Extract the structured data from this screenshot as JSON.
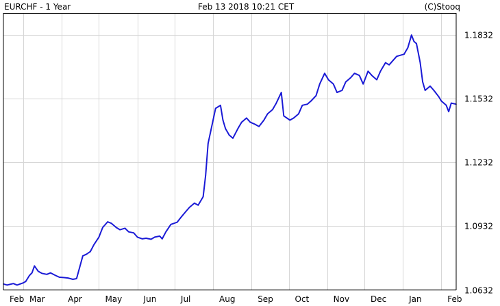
{
  "header": {
    "title": "EURCHF - 1 Year",
    "timestamp": "Feb 13 2018 10:21 CET",
    "source": "(C)Stooq"
  },
  "colors": {
    "series": "#1a1ad6",
    "grid": "#d6d6d6",
    "frame": "#000000",
    "background": "#ffffff"
  },
  "chart_data": {
    "type": "line",
    "title": "EURCHF - 1 Year",
    "xlabel": "",
    "ylabel": "",
    "grid": true,
    "y_axis_side": "right",
    "ylim": [
      1.0632,
      1.1932
    ],
    "yticks": [
      1.0632,
      1.0932,
      1.1232,
      1.1532,
      1.1832
    ],
    "ytick_labels": [
      "1.0632",
      "1.0932",
      "1.1232",
      "1.1532",
      "1.1832"
    ],
    "xlim": [
      "2017-02-13",
      "2018-02-13"
    ],
    "xtick_labels": [
      {
        "label": "Feb",
        "date": "2017-02-01"
      },
      {
        "label": "Mar",
        "date": "2017-03-01"
      },
      {
        "label": "Apr",
        "date": "2017-04-01"
      },
      {
        "label": "May",
        "date": "2017-05-01"
      },
      {
        "label": "Jun",
        "date": "2017-06-01"
      },
      {
        "label": "Jul",
        "date": "2017-07-01"
      },
      {
        "label": "Aug",
        "date": "2017-08-01"
      },
      {
        "label": "Sep",
        "date": "2017-09-01"
      },
      {
        "label": "Oct",
        "date": "2017-10-01"
      },
      {
        "label": "Nov",
        "date": "2017-11-01"
      },
      {
        "label": "Dec",
        "date": "2017-12-01"
      },
      {
        "label": "Jan",
        "date": "2018-01-01"
      },
      {
        "label": "Feb",
        "date": "2018-02-01"
      }
    ],
    "series": [
      {
        "points": [
          [
            "2017-02-13",
            1.066
          ],
          [
            "2017-02-16",
            1.0655
          ],
          [
            "2017-02-21",
            1.0662
          ],
          [
            "2017-02-24",
            1.0655
          ],
          [
            "2017-03-01",
            1.0665
          ],
          [
            "2017-03-03",
            1.0672
          ],
          [
            "2017-03-06",
            1.07
          ],
          [
            "2017-03-08",
            1.0712
          ],
          [
            "2017-03-10",
            1.0745
          ],
          [
            "2017-03-13",
            1.072
          ],
          [
            "2017-03-16",
            1.071
          ],
          [
            "2017-03-20",
            1.0705
          ],
          [
            "2017-03-23",
            1.0712
          ],
          [
            "2017-03-27",
            1.07
          ],
          [
            "2017-03-30",
            1.0692
          ],
          [
            "2017-04-03",
            1.069
          ],
          [
            "2017-04-06",
            1.0688
          ],
          [
            "2017-04-10",
            1.0682
          ],
          [
            "2017-04-13",
            1.0685
          ],
          [
            "2017-04-18",
            1.0792
          ],
          [
            "2017-04-21",
            1.08
          ],
          [
            "2017-04-24",
            1.0812
          ],
          [
            "2017-04-27",
            1.0845
          ],
          [
            "2017-05-01",
            1.088
          ],
          [
            "2017-05-04",
            1.0925
          ],
          [
            "2017-05-08",
            1.0952
          ],
          [
            "2017-05-11",
            1.0945
          ],
          [
            "2017-05-15",
            1.0925
          ],
          [
            "2017-05-18",
            1.0915
          ],
          [
            "2017-05-22",
            1.0922
          ],
          [
            "2017-05-25",
            1.0905
          ],
          [
            "2017-05-29",
            1.09
          ],
          [
            "2017-06-01",
            1.088
          ],
          [
            "2017-06-05",
            1.0872
          ],
          [
            "2017-06-08",
            1.0875
          ],
          [
            "2017-06-12",
            1.087
          ],
          [
            "2017-06-15",
            1.088
          ],
          [
            "2017-06-19",
            1.0885
          ],
          [
            "2017-06-21",
            1.0872
          ],
          [
            "2017-06-24",
            1.0905
          ],
          [
            "2017-06-28",
            1.094
          ],
          [
            "2017-07-03",
            1.095
          ],
          [
            "2017-07-06",
            1.0972
          ],
          [
            "2017-07-10",
            1.1
          ],
          [
            "2017-07-13",
            1.102
          ],
          [
            "2017-07-17",
            1.104
          ],
          [
            "2017-07-20",
            1.103
          ],
          [
            "2017-07-24",
            1.107
          ],
          [
            "2017-07-26",
            1.117
          ],
          [
            "2017-07-28",
            1.132
          ],
          [
            "2017-08-01",
            1.143
          ],
          [
            "2017-08-03",
            1.1485
          ],
          [
            "2017-08-07",
            1.15
          ],
          [
            "2017-08-09",
            1.143
          ],
          [
            "2017-08-11",
            1.139
          ],
          [
            "2017-08-14",
            1.136
          ],
          [
            "2017-08-17",
            1.1345
          ],
          [
            "2017-08-21",
            1.139
          ],
          [
            "2017-08-24",
            1.142
          ],
          [
            "2017-08-28",
            1.144
          ],
          [
            "2017-08-31",
            1.142
          ],
          [
            "2017-09-04",
            1.141
          ],
          [
            "2017-09-07",
            1.14
          ],
          [
            "2017-09-11",
            1.143
          ],
          [
            "2017-09-14",
            1.146
          ],
          [
            "2017-09-18",
            1.148
          ],
          [
            "2017-09-21",
            1.151
          ],
          [
            "2017-09-25",
            1.156
          ],
          [
            "2017-09-27",
            1.145
          ],
          [
            "2017-10-02",
            1.143
          ],
          [
            "2017-10-05",
            1.144
          ],
          [
            "2017-10-09",
            1.146
          ],
          [
            "2017-10-12",
            1.15
          ],
          [
            "2017-10-16",
            1.1505
          ],
          [
            "2017-10-19",
            1.152
          ],
          [
            "2017-10-23",
            1.1545
          ],
          [
            "2017-10-26",
            1.16
          ],
          [
            "2017-10-30",
            1.165
          ],
          [
            "2017-11-02",
            1.162
          ],
          [
            "2017-11-06",
            1.16
          ],
          [
            "2017-11-09",
            1.156
          ],
          [
            "2017-11-13",
            1.157
          ],
          [
            "2017-11-16",
            1.161
          ],
          [
            "2017-11-20",
            1.163
          ],
          [
            "2017-11-23",
            1.165
          ],
          [
            "2017-11-27",
            1.164
          ],
          [
            "2017-11-30",
            1.16
          ],
          [
            "2017-12-04",
            1.166
          ],
          [
            "2017-12-07",
            1.164
          ],
          [
            "2017-12-11",
            1.162
          ],
          [
            "2017-12-14",
            1.166
          ],
          [
            "2017-12-18",
            1.17
          ],
          [
            "2017-12-21",
            1.169
          ],
          [
            "2017-12-27",
            1.173
          ],
          [
            "2018-01-02",
            1.174
          ],
          [
            "2018-01-05",
            1.177
          ],
          [
            "2018-01-08",
            1.183
          ],
          [
            "2018-01-10",
            1.18
          ],
          [
            "2018-01-12",
            1.179
          ],
          [
            "2018-01-15",
            1.17
          ],
          [
            "2018-01-17",
            1.161
          ],
          [
            "2018-01-19",
            1.157
          ],
          [
            "2018-01-23",
            1.159
          ],
          [
            "2018-01-26",
            1.157
          ],
          [
            "2018-01-30",
            1.154
          ],
          [
            "2018-02-01",
            1.152
          ],
          [
            "2018-02-05",
            1.15
          ],
          [
            "2018-02-07",
            1.147
          ],
          [
            "2018-02-09",
            1.151
          ],
          [
            "2018-02-13",
            1.1505
          ]
        ]
      }
    ]
  }
}
